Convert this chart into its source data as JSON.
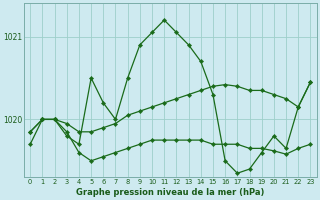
{
  "title": "Graphe pression niveau de la mer (hPa)",
  "background_color": "#ceeaf0",
  "grid_color": "#9ecfca",
  "line_color": "#1a6b1a",
  "marker_color": "#1a6b1a",
  "label_color": "#1a5c1a",
  "s1": [
    1019.7,
    1020.0,
    1020.0,
    1019.8,
    1019.7,
    1020.5,
    1020.2,
    1020.0,
    1020.5,
    1020.9,
    1021.05,
    1021.2,
    1021.05,
    1020.9,
    1020.7,
    1020.3,
    1019.5,
    1019.35,
    1019.4,
    1019.6,
    1019.8,
    1019.65,
    1020.15,
    1020.45
  ],
  "s2": [
    1019.85,
    1020.0,
    1020.0,
    1019.95,
    1019.85,
    1019.85,
    1019.9,
    1019.95,
    1020.05,
    1020.1,
    1020.15,
    1020.2,
    1020.25,
    1020.3,
    1020.35,
    1020.4,
    1020.42,
    1020.4,
    1020.35,
    1020.35,
    1020.3,
    1020.25,
    1020.15,
    1020.45
  ],
  "s3": [
    1019.85,
    1020.0,
    1020.0,
    1019.85,
    1019.6,
    1019.5,
    1019.55,
    1019.6,
    1019.65,
    1019.7,
    1019.75,
    1019.75,
    1019.75,
    1019.75,
    1019.75,
    1019.7,
    1019.7,
    1019.7,
    1019.65,
    1019.65,
    1019.62,
    1019.58,
    1019.65,
    1019.7
  ],
  "ylim": [
    1019.3,
    1021.4
  ],
  "ytick_vals": [
    1020,
    1021
  ],
  "ytick_labels": [
    "1020",
    "1021"
  ],
  "figsize": [
    3.2,
    2.0
  ],
  "dpi": 100
}
